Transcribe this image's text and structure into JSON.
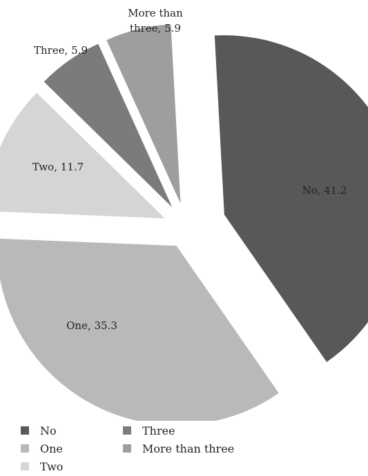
{
  "chart_data": {
    "type": "pie",
    "title": "",
    "slices": [
      {
        "name": "No",
        "value": 41.2,
        "color": "#58585a",
        "label": "No, 41.2"
      },
      {
        "name": "One",
        "value": 35.3,
        "color": "#b9b9bb",
        "label": "One, 35.3"
      },
      {
        "name": "Two",
        "value": 11.7,
        "color": "#d5d5d7",
        "label": "Two, 11.7"
      },
      {
        "name": "Three",
        "value": 5.9,
        "color": "#7b7b7d",
        "label": "Three, 5.9"
      },
      {
        "name": "More than three",
        "value": 5.9,
        "color": "#9e9ea0",
        "label_lines": [
          "More than",
          "three, 5.9"
        ]
      }
    ],
    "legend": {
      "placement": "bottom",
      "entries": [
        "No",
        "One",
        "Two",
        "Three",
        "More than three"
      ]
    },
    "exploded": true
  }
}
